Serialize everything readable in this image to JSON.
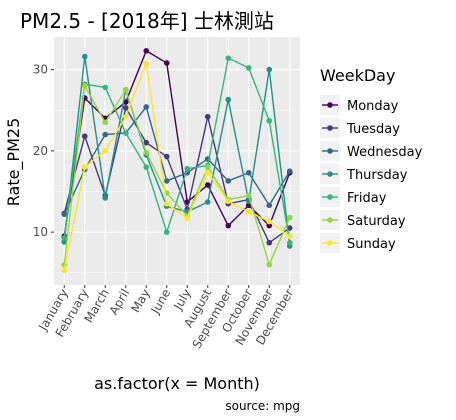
{
  "chart_data": {
    "type": "line",
    "title": "PM2.5 - [2018年]   士林測站",
    "xlabel": "as.factor(x = Month)",
    "ylabel": "Rate_PM25",
    "caption": "source: mpg",
    "legend_title": "WeekDay",
    "legend_position": "right",
    "grid": true,
    "background": "#ebebeb",
    "ylim": [
      3.5,
      34
    ],
    "yticks": [
      10,
      20,
      30
    ],
    "categories": [
      "January",
      "February",
      "March",
      "April",
      "May",
      "June",
      "July",
      "August",
      "September",
      "October",
      "November",
      "December"
    ],
    "series": [
      {
        "name": "Monday",
        "color": "#440154",
        "values": [
          9.5,
          26.5,
          24.0,
          26.0,
          32.3,
          30.8,
          13.7,
          15.8,
          10.8,
          13.3,
          10.8,
          17.3
        ]
      },
      {
        "name": "Tuesday",
        "color": "#443983",
        "values": [
          12.3,
          21.8,
          14.5,
          25.3,
          21.0,
          19.3,
          12.8,
          24.2,
          13.5,
          14.0,
          8.7,
          10.5
        ]
      },
      {
        "name": "Wednesday",
        "color": "#31688e",
        "values": [
          12.2,
          17.7,
          22.0,
          22.2,
          25.4,
          16.3,
          17.3,
          19.0,
          16.3,
          17.3,
          13.3,
          17.5
        ]
      },
      {
        "name": "Thursday",
        "color": "#21918c",
        "values": [
          8.8,
          31.6,
          14.2,
          27.5,
          19.5,
          13.2,
          12.5,
          13.7,
          26.3,
          13.8,
          30.0,
          8.3
        ]
      },
      {
        "name": "Friday",
        "color": "#35b779",
        "values": [
          9.3,
          28.2,
          27.8,
          22.2,
          18.0,
          10.0,
          17.8,
          18.2,
          31.4,
          30.2,
          23.7,
          8.7
        ]
      },
      {
        "name": "Saturday",
        "color": "#90d743",
        "values": [
          6.0,
          28.0,
          23.5,
          27.5,
          19.8,
          14.8,
          12.0,
          18.0,
          14.0,
          14.5,
          6.0,
          11.8
        ]
      },
      {
        "name": "Sunday",
        "color": "#fde725",
        "values": [
          5.3,
          18.0,
          20.0,
          24.2,
          30.7,
          13.5,
          11.7,
          17.3,
          13.8,
          12.5,
          11.3,
          9.5
        ]
      }
    ]
  }
}
